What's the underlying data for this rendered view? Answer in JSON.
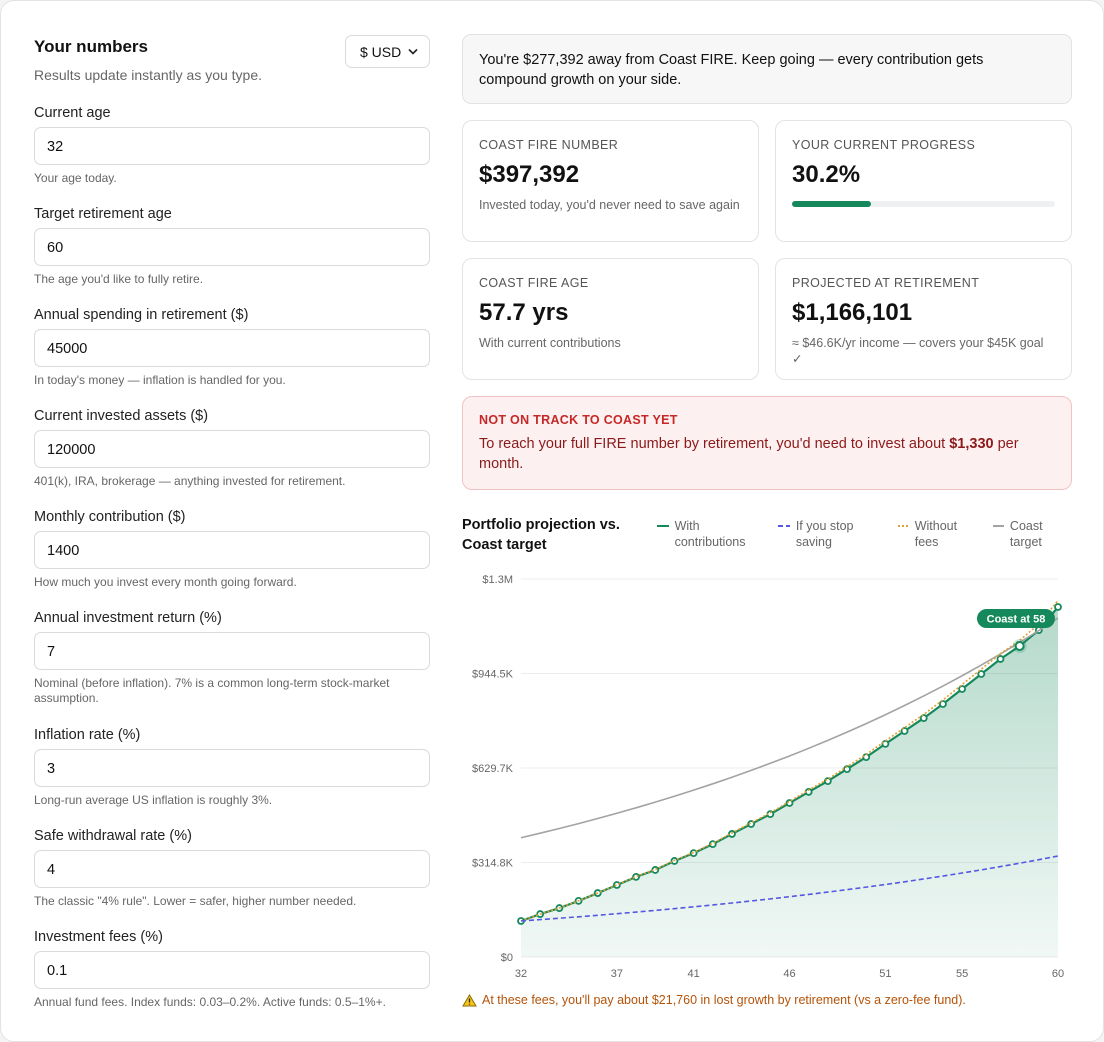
{
  "header": {
    "title": "Your numbers",
    "subtitle": "Results update instantly as you type.",
    "currency": "$ USD"
  },
  "fields": [
    {
      "label": "Current age",
      "value": "32",
      "hint": "Your age today."
    },
    {
      "label": "Target retirement age",
      "value": "60",
      "hint": "The age you'd like to fully retire."
    },
    {
      "label": "Annual spending in retirement ($)",
      "value": "45000",
      "hint": "In today's money — inflation is handled for you."
    },
    {
      "label": "Current invested assets ($)",
      "value": "120000",
      "hint": "401(k), IRA, brokerage — anything invested for retirement."
    },
    {
      "label": "Monthly contribution ($)",
      "value": "1400",
      "hint": "How much you invest every month going forward."
    },
    {
      "label": "Annual investment return (%)",
      "value": "7",
      "hint": "Nominal (before inflation). 7% is a common long-term stock-market assumption."
    },
    {
      "label": "Inflation rate (%)",
      "value": "3",
      "hint": "Long-run average US inflation is roughly 3%."
    },
    {
      "label": "Safe withdrawal rate (%)",
      "value": "4",
      "hint": "The classic \"4% rule\". Lower = safer, higher number needed."
    },
    {
      "label": "Investment fees (%)",
      "value": "0.1",
      "hint": "Annual fund fees. Index funds: 0.03–0.2%. Active funds: 0.5–1%+."
    }
  ],
  "banner": "You're $277,392 away from Coast FIRE. Keep going — every contribution gets compound growth on your side.",
  "cards": [
    {
      "label": "COAST FIRE NUMBER",
      "value": "$397,392",
      "note": "Invested today, you'd never need to save again"
    },
    {
      "label": "YOUR CURRENT PROGRESS",
      "value": "30.2%",
      "progress": 30.2
    },
    {
      "label": "COAST FIRE AGE",
      "value": "57.7 yrs",
      "note": "With current contributions"
    },
    {
      "label": "PROJECTED AT RETIREMENT",
      "value": "$1,166,101",
      "note": "≈ $46.6K/yr income — covers your $45K goal ✓"
    }
  ],
  "alert": {
    "title": "NOT ON TRACK TO COAST YET",
    "text": "To reach your full FIRE number by retirement, you'd need to invest about ",
    "amount": "$1,330",
    "text_end": " per month."
  },
  "chart_data": {
    "type": "line",
    "title": "Portfolio projection vs. Coast target",
    "x": [
      32,
      33,
      34,
      35,
      36,
      37,
      38,
      39,
      40,
      41,
      42,
      43,
      44,
      45,
      46,
      47,
      48,
      49,
      50,
      51,
      52,
      53,
      54,
      55,
      56,
      57,
      58,
      59,
      60
    ],
    "xlim": [
      32,
      60
    ],
    "xticks": [
      32,
      37,
      41,
      46,
      51,
      55,
      60
    ],
    "ylim": [
      0,
      1259400
    ],
    "yticks": [
      {
        "value": 0,
        "label": "$0"
      },
      {
        "value": 314850,
        "label": "$314.8K"
      },
      {
        "value": 629700,
        "label": "$629.7K"
      },
      {
        "value": 944550,
        "label": "$944.5K"
      },
      {
        "value": 1259400,
        "label": "$1.3M"
      }
    ],
    "grid": true,
    "series": [
      {
        "name": "With contributions",
        "color": "#15895c",
        "dash": "solid",
        "markers": true,
        "fill": true,
        "values": [
          120000,
          143000,
          163000,
          187000,
          213000,
          240000,
          267000,
          290000,
          320000,
          346000,
          376000,
          410000,
          443000,
          476000,
          513000,
          550000,
          586000,
          626000,
          666000,
          710000,
          753000,
          796000,
          843000,
          893000,
          943000,
          993000,
          1036000,
          1089000,
          1166101
        ]
      },
      {
        "name": "If you stop saving",
        "color": "#5558e0",
        "dash": "dashed",
        "markers": false,
        "fill": false,
        "values": [
          120000,
          124500,
          129169,
          134013,
          139038,
          144252,
          149662,
          155274,
          161097,
          167138,
          173406,
          179909,
          186655,
          193655,
          200917,
          208451,
          216268,
          224378,
          232793,
          241522,
          250579,
          259976,
          269725,
          279840,
          290334,
          301221,
          312517,
          324236,
          336395
        ]
      },
      {
        "name": "Without fees",
        "color": "#e0a030",
        "dash": "dotted",
        "markers": false,
        "fill": false,
        "values": [
          120000,
          143028,
          163111,
          187250,
          213444,
          240694,
          267999,
          291360,
          321777,
          348249,
          378776,
          413359,
          446997,
          480691,
          518440,
          556245,
          593106,
          634022,
          674994,
          720021,
          764103,
          808241,
          856435,
          907684,
          958988,
          1010348,
          1054764,
          1109235,
          1187861
        ]
      },
      {
        "name": "Coast target",
        "color": "#a3a3a3",
        "dash": "solid",
        "markers": false,
        "fill": false,
        "values": [
          397392,
          412493,
          428168,
          444438,
          461327,
          478857,
          497054,
          515942,
          535548,
          555899,
          577023,
          598950,
          621710,
          645335,
          669858,
          695313,
          721735,
          749161,
          777629,
          807179,
          837852,
          869690,
          902738,
          937042,
          972650,
          1009611,
          1047976,
          1087799,
          1129135
        ]
      }
    ],
    "annotations": [
      {
        "text": "Coast at 58",
        "x": 58
      }
    ]
  },
  "warning": "At these fees, you'll pay about $21,760 in lost growth by retirement (vs a zero-fee fund)."
}
